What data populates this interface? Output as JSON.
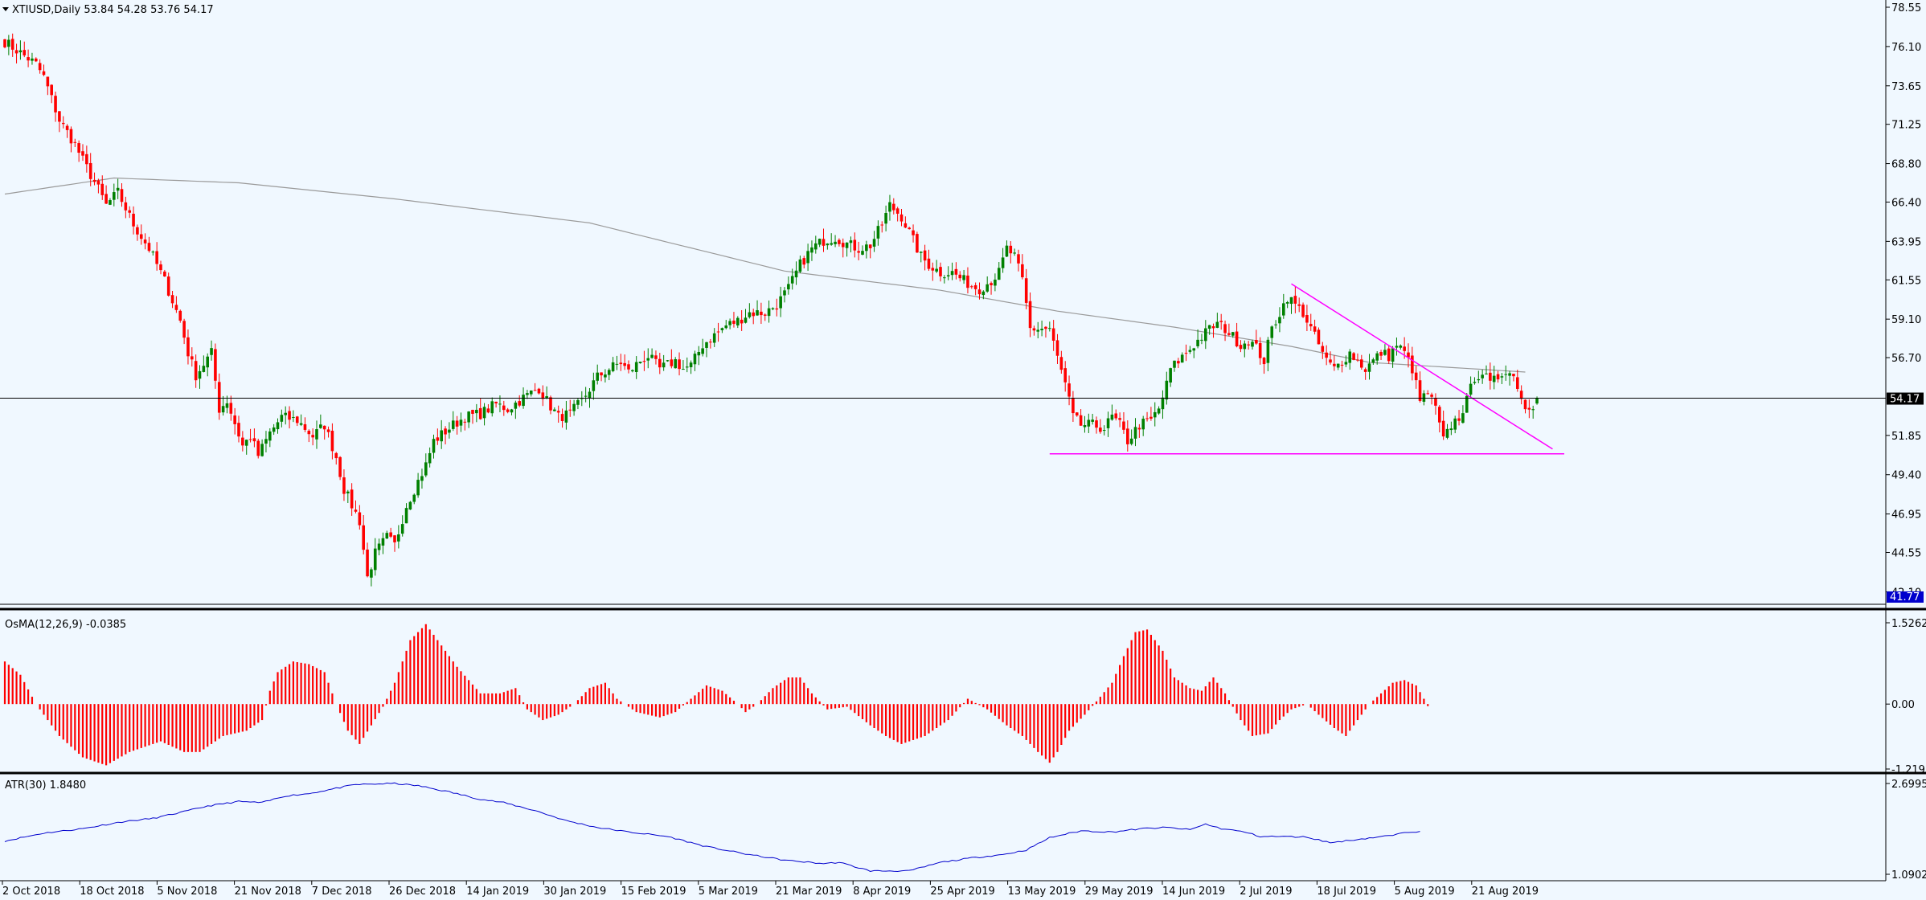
{
  "colors": {
    "background": "#f0f8ff",
    "bull": "#008000",
    "bear": "#ff0000",
    "ma": "#9a9a9a",
    "trendline": "#ff00ff",
    "atr": "#0000cd",
    "grid_text": "#000000",
    "price_badge_bg": "#000000",
    "low_badge_bg": "#0000cd"
  },
  "icons": {
    "menu": "triangle-down-icon"
  },
  "panels": {
    "price": {
      "title": "XTIUSD,Daily  53.84 54.28 53.76 54.17"
    },
    "osma": {
      "title": "OsMA(12,26,9) -0.0385"
    },
    "atr": {
      "title": "ATR(30) 1.8480"
    }
  },
  "price_axis": {
    "ticks": [
      "78.55",
      "76.10",
      "73.65",
      "71.25",
      "68.80",
      "66.40",
      "63.95",
      "61.55",
      "59.10",
      "56.70",
      "51.85",
      "49.40",
      "46.95",
      "44.55",
      "42.10"
    ],
    "current_badge": "54.17",
    "low_badge": "41.77"
  },
  "osma_axis": {
    "ticks": [
      "1.5262",
      "0.00",
      "-1.2191"
    ]
  },
  "atr_axis": {
    "ticks": [
      "2.6995",
      "1.0902"
    ]
  },
  "time_axis": {
    "labels": [
      "2 Oct 2018",
      "18 Oct 2018",
      "5 Nov 2018",
      "21 Nov 2018",
      "7 Dec 2018",
      "26 Dec 2018",
      "14 Jan 2019",
      "30 Jan 2019",
      "15 Feb 2019",
      "5 Mar 2019",
      "21 Mar 2019",
      "8 Apr 2019",
      "25 Apr 2019",
      "13 May 2019",
      "29 May 2019",
      "14 Jun 2019",
      "2 Jul 2019",
      "18 Jul 2019",
      "5 Aug 2019",
      "21 Aug 2019"
    ]
  },
  "chart_data": [
    {
      "type": "candlestick",
      "symbol": "XTIUSD",
      "timeframe": "Daily",
      "ohlc_last": {
        "open": 53.84,
        "high": 54.28,
        "low": 53.76,
        "close": 54.17
      },
      "ylim": [
        41.77,
        78.55
      ],
      "close_anchors": [
        [
          0,
          76.4
        ],
        [
          8,
          75.0
        ],
        [
          10,
          74.2
        ],
        [
          14,
          71.5
        ],
        [
          18,
          70.0
        ],
        [
          20,
          69.0
        ],
        [
          24,
          67.2
        ],
        [
          26,
          66.2
        ],
        [
          29,
          67.0
        ],
        [
          33,
          65.0
        ],
        [
          37,
          63.5
        ],
        [
          41,
          61.5
        ],
        [
          45,
          59.0
        ],
        [
          47,
          57.0
        ],
        [
          49,
          55.6
        ],
        [
          53,
          57.0
        ],
        [
          55,
          53.5
        ],
        [
          57,
          54.0
        ],
        [
          61,
          51.2
        ],
        [
          63,
          51.8
        ],
        [
          65,
          50.6
        ],
        [
          68,
          52.0
        ],
        [
          71,
          53.0
        ],
        [
          75,
          52.8
        ],
        [
          79,
          51.8
        ],
        [
          82,
          52.5
        ],
        [
          85,
          50.5
        ],
        [
          87,
          48.5
        ],
        [
          91,
          46.5
        ],
        [
          93,
          43.0
        ],
        [
          95,
          44.5
        ],
        [
          98,
          45.5
        ],
        [
          100,
          45.0
        ],
        [
          103,
          47.5
        ],
        [
          108,
          50.0
        ],
        [
          110,
          51.5
        ],
        [
          115,
          52.5
        ],
        [
          118,
          53.0
        ],
        [
          122,
          53.2
        ],
        [
          126,
          53.8
        ],
        [
          129,
          53.5
        ],
        [
          133,
          54.2
        ],
        [
          137,
          54.8
        ],
        [
          139,
          54.0
        ],
        [
          142,
          53.0
        ],
        [
          145,
          53.2
        ],
        [
          148,
          54.0
        ],
        [
          152,
          55.5
        ],
        [
          155,
          56.0
        ],
        [
          158,
          56.4
        ],
        [
          160,
          55.8
        ],
        [
          163,
          56.5
        ],
        [
          165,
          56.8
        ],
        [
          168,
          56.0
        ],
        [
          172,
          56.5
        ],
        [
          174,
          56.0
        ],
        [
          176,
          56.2
        ],
        [
          179,
          57.5
        ],
        [
          183,
          58.3
        ],
        [
          185,
          58.7
        ],
        [
          188,
          59.0
        ],
        [
          191,
          59.5
        ],
        [
          195,
          59.5
        ],
        [
          198,
          60.0
        ],
        [
          201,
          61.0
        ],
        [
          204,
          62.5
        ],
        [
          207,
          63.5
        ],
        [
          210,
          64.0
        ],
        [
          213,
          64.2
        ],
        [
          216,
          63.8
        ],
        [
          219,
          63.5
        ],
        [
          222,
          63.7
        ],
        [
          225,
          65.0
        ],
        [
          227,
          66.2
        ],
        [
          230,
          65.5
        ],
        [
          232,
          64.5
        ],
        [
          235,
          63.0
        ],
        [
          237,
          62.5
        ],
        [
          240,
          62.0
        ],
        [
          243,
          62.0
        ],
        [
          246,
          61.5
        ],
        [
          248,
          61.2
        ],
        [
          250,
          61.0
        ],
        [
          253,
          61.5
        ],
        [
          255,
          62.0
        ],
        [
          257,
          63.5
        ],
        [
          259,
          63.0
        ],
        [
          261,
          61.5
        ],
        [
          263,
          58.5
        ],
        [
          265,
          58.5
        ],
        [
          268,
          58.5
        ],
        [
          270,
          56.7
        ],
        [
          272,
          55.0
        ],
        [
          274,
          53.0
        ],
        [
          276,
          52.5
        ],
        [
          279,
          52.5
        ],
        [
          282,
          52.3
        ],
        [
          284,
          53.0
        ],
        [
          286,
          52.5
        ],
        [
          288,
          51.5
        ],
        [
          291,
          52.5
        ],
        [
          294,
          52.8
        ],
        [
          296,
          53.5
        ],
        [
          298,
          55.0
        ],
        [
          299,
          56.0
        ],
        [
          301,
          56.5
        ],
        [
          303,
          57.0
        ],
        [
          305,
          57.5
        ],
        [
          307,
          58.0
        ],
        [
          309,
          58.5
        ],
        [
          311,
          58.8
        ],
        [
          313,
          58.5
        ],
        [
          315,
          58.0
        ],
        [
          317,
          57.5
        ],
        [
          319,
          57.8
        ],
        [
          321,
          57.3
        ],
        [
          323,
          56.5
        ],
        [
          325,
          58.5
        ],
        [
          327,
          59.5
        ],
        [
          329,
          60.5
        ],
        [
          331,
          60.0
        ],
        [
          333,
          59.5
        ],
        [
          335,
          58.5
        ],
        [
          337,
          57.5
        ],
        [
          339,
          56.5
        ],
        [
          341,
          56.0
        ],
        [
          343,
          56.5
        ],
        [
          345,
          57.0
        ],
        [
          347,
          56.5
        ],
        [
          349,
          56.0
        ],
        [
          351,
          56.5
        ],
        [
          353,
          57.0
        ],
        [
          355,
          56.8
        ],
        [
          357,
          57.5
        ],
        [
          359,
          57.0
        ],
        [
          361,
          56.0
        ],
        [
          363,
          54.0
        ],
        [
          365,
          54.5
        ],
        [
          367,
          53.5
        ],
        [
          369,
          51.5
        ],
        [
          371,
          52.5
        ],
        [
          373,
          53.0
        ],
        [
          375,
          54.0
        ],
        [
          377,
          55.5
        ],
        [
          379,
          55.8
        ],
        [
          381,
          55.0
        ],
        [
          383,
          55.5
        ],
        [
          385,
          56.0
        ],
        [
          387,
          55.5
        ],
        [
          388,
          55.0
        ],
        [
          390,
          53.5
        ],
        [
          392,
          53.8
        ],
        [
          393,
          54.17
        ]
      ],
      "ma": [
        [
          0,
          66.9
        ],
        [
          28,
          67.9
        ],
        [
          60,
          67.6
        ],
        [
          100,
          66.6
        ],
        [
          150,
          65.1
        ],
        [
          200,
          62.1
        ],
        [
          240,
          60.9
        ],
        [
          270,
          59.6
        ],
        [
          300,
          58.6
        ],
        [
          330,
          57.4
        ],
        [
          350,
          56.4
        ],
        [
          390,
          55.8
        ]
      ],
      "trendlines": [
        {
          "points": [
            [
              268,
              50.7
            ],
            [
              400,
              50.7
            ]
          ]
        },
        {
          "points": [
            [
              330,
              61.3
            ],
            [
              397,
              51.0
            ]
          ]
        }
      ],
      "current_price": 54.17
    },
    {
      "type": "bar",
      "name": "OsMA(12,26,9)",
      "last": -0.0385,
      "ylim": [
        -1.2191,
        1.5262
      ],
      "anchors": [
        [
          0,
          0.8
        ],
        [
          4,
          0.55
        ],
        [
          8,
          0.0
        ],
        [
          14,
          -0.6
        ],
        [
          20,
          -1.0
        ],
        [
          26,
          -1.15
        ],
        [
          32,
          -0.9
        ],
        [
          40,
          -0.7
        ],
        [
          46,
          -0.9
        ],
        [
          50,
          -0.9
        ],
        [
          56,
          -0.6
        ],
        [
          62,
          -0.5
        ],
        [
          66,
          -0.3
        ],
        [
          68,
          0.25
        ],
        [
          70,
          0.6
        ],
        [
          74,
          0.8
        ],
        [
          78,
          0.75
        ],
        [
          82,
          0.6
        ],
        [
          85,
          0.0
        ],
        [
          88,
          -0.5
        ],
        [
          91,
          -0.75
        ],
        [
          94,
          -0.4
        ],
        [
          97,
          -0.05
        ],
        [
          100,
          0.4
        ],
        [
          104,
          1.2
        ],
        [
          108,
          1.5
        ],
        [
          111,
          1.2
        ],
        [
          116,
          0.7
        ],
        [
          122,
          0.2
        ],
        [
          127,
          0.2
        ],
        [
          131,
          0.3
        ],
        [
          134,
          -0.1
        ],
        [
          138,
          -0.3
        ],
        [
          142,
          -0.2
        ],
        [
          146,
          0.0
        ],
        [
          150,
          0.3
        ],
        [
          154,
          0.4
        ],
        [
          157,
          0.1
        ],
        [
          162,
          -0.15
        ],
        [
          168,
          -0.25
        ],
        [
          172,
          -0.15
        ],
        [
          176,
          0.1
        ],
        [
          180,
          0.35
        ],
        [
          184,
          0.25
        ],
        [
          188,
          0.0
        ],
        [
          190,
          -0.15
        ],
        [
          193,
          0.0
        ],
        [
          197,
          0.3
        ],
        [
          201,
          0.5
        ],
        [
          204,
          0.5
        ],
        [
          207,
          0.2
        ],
        [
          211,
          -0.1
        ],
        [
          216,
          -0.05
        ],
        [
          222,
          -0.4
        ],
        [
          226,
          -0.6
        ],
        [
          230,
          -0.75
        ],
        [
          236,
          -0.6
        ],
        [
          242,
          -0.3
        ],
        [
          247,
          0.1
        ],
        [
          252,
          -0.1
        ],
        [
          257,
          -0.4
        ],
        [
          261,
          -0.6
        ],
        [
          265,
          -0.9
        ],
        [
          268,
          -1.1
        ],
        [
          270,
          -0.9
        ],
        [
          273,
          -0.5
        ],
        [
          277,
          -0.2
        ],
        [
          280,
          0.05
        ],
        [
          284,
          0.4
        ],
        [
          287,
          0.9
        ],
        [
          290,
          1.35
        ],
        [
          293,
          1.4
        ],
        [
          297,
          1.0
        ],
        [
          300,
          0.5
        ],
        [
          304,
          0.3
        ],
        [
          307,
          0.25
        ],
        [
          310,
          0.5
        ],
        [
          313,
          0.2
        ],
        [
          317,
          -0.3
        ],
        [
          320,
          -0.6
        ],
        [
          324,
          -0.55
        ],
        [
          327,
          -0.3
        ],
        [
          330,
          -0.1
        ],
        [
          334,
          0.0
        ],
        [
          337,
          -0.2
        ],
        [
          341,
          -0.45
        ],
        [
          344,
          -0.6
        ],
        [
          347,
          -0.3
        ],
        [
          350,
          0.0
        ],
        [
          353,
          0.2
        ],
        [
          356,
          0.4
        ],
        [
          359,
          0.45
        ],
        [
          362,
          0.35
        ],
        [
          364,
          0.1
        ],
        [
          365,
          -0.04
        ]
      ]
    },
    {
      "type": "line",
      "name": "ATR(30)",
      "last": 1.848,
      "ylim": [
        1.0902,
        2.6995
      ],
      "anchors": [
        [
          0,
          1.68
        ],
        [
          10,
          1.82
        ],
        [
          20,
          1.9
        ],
        [
          30,
          2.02
        ],
        [
          38,
          2.08
        ],
        [
          46,
          2.2
        ],
        [
          52,
          2.3
        ],
        [
          60,
          2.38
        ],
        [
          66,
          2.36
        ],
        [
          72,
          2.48
        ],
        [
          78,
          2.52
        ],
        [
          84,
          2.6
        ],
        [
          90,
          2.68
        ],
        [
          100,
          2.7
        ],
        [
          106,
          2.66
        ],
        [
          114,
          2.55
        ],
        [
          122,
          2.42
        ],
        [
          128,
          2.36
        ],
        [
          136,
          2.22
        ],
        [
          144,
          2.04
        ],
        [
          152,
          1.92
        ],
        [
          160,
          1.84
        ],
        [
          170,
          1.76
        ],
        [
          180,
          1.58
        ],
        [
          190,
          1.45
        ],
        [
          200,
          1.34
        ],
        [
          210,
          1.28
        ],
        [
          214,
          1.3
        ],
        [
          222,
          1.15
        ],
        [
          232,
          1.15
        ],
        [
          240,
          1.3
        ],
        [
          248,
          1.38
        ],
        [
          256,
          1.44
        ],
        [
          262,
          1.52
        ],
        [
          268,
          1.74
        ],
        [
          276,
          1.86
        ],
        [
          284,
          1.84
        ],
        [
          292,
          1.9
        ],
        [
          298,
          1.92
        ],
        [
          304,
          1.88
        ],
        [
          308,
          1.98
        ],
        [
          312,
          1.9
        ],
        [
          318,
          1.84
        ],
        [
          322,
          1.76
        ],
        [
          328,
          1.76
        ],
        [
          334,
          1.75
        ],
        [
          340,
          1.65
        ],
        [
          346,
          1.7
        ],
        [
          352,
          1.75
        ],
        [
          356,
          1.78
        ],
        [
          360,
          1.84
        ],
        [
          363,
          1.85
        ]
      ]
    }
  ]
}
